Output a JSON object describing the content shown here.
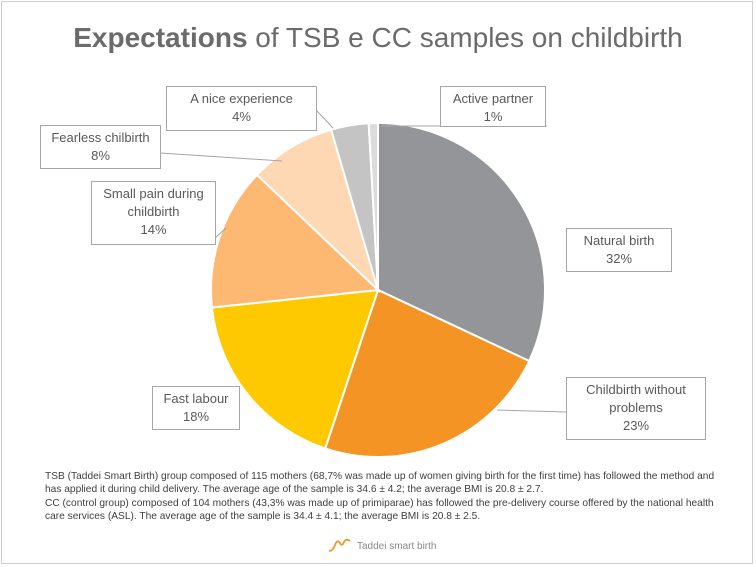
{
  "title": {
    "bold": "Expectations",
    "rest": " of TSB e CC samples on childbirth"
  },
  "chart_data": {
    "type": "pie",
    "title": "Expectations of TSB e CC samples on childbirth",
    "slices": [
      {
        "label": "Natural birth",
        "percent_label": "32%",
        "value": 32.5,
        "color": "#939598"
      },
      {
        "label": "Childbirth without problems",
        "percent_label": "23%",
        "value": 23.5,
        "color": "#f39424"
      },
      {
        "label": "Fast labour",
        "percent_label": "18%",
        "value": 18.5,
        "color": "#fec900"
      },
      {
        "label": "Small pain during childbirth",
        "percent_label": "14%",
        "value": 14.0,
        "color": "#fdb872"
      },
      {
        "label": "Fearless chilbirth",
        "percent_label": "8%",
        "value": 8.5,
        "color": "#fdd8b3"
      },
      {
        "label": "A nice experience",
        "percent_label": "4%",
        "value": 3.7,
        "color": "#c4c4c4"
      },
      {
        "label": "Active partner",
        "percent_label": "1%",
        "value": 0.9,
        "color": "#dcdcdc"
      }
    ]
  },
  "callouts": {
    "natural": {
      "label": "Natural birth",
      "pct": "32%"
    },
    "without_problems": {
      "label1": "Childbirth  without",
      "label2": "problems",
      "pct": "23%"
    },
    "fast": {
      "label": "Fast labour",
      "pct": "18%"
    },
    "small_pain": {
      "label1": "Small pain during",
      "label2": "childbirth",
      "pct": "14%"
    },
    "fearless": {
      "label": "Fearless chilbirth",
      "pct": "8%"
    },
    "nice": {
      "label": "A nice experience",
      "pct": "4%"
    },
    "active": {
      "label": "Active partner",
      "pct": "1%"
    }
  },
  "note": {
    "line1": "TSB (Taddei Smart Birth) group composed of 115 mothers (68,7% was made up of women giving birth for the first time) has followed the method and has applied it during child delivery. The average age of the sample is 34.6 ± 4.2; the average BMI is 20.8 ± 2.7.",
    "line2": "CC (control group) composed of 104 mothers (43,3% was made up of primiparae) has followed the pre-delivery course offered by the national health care services (ASL). The average age of the sample is 34.4 ± 4.1; the average BMI is 20.8 ± 2.5."
  },
  "logo": {
    "text": "Taddei smart birth",
    "icon": "wave-logo-icon",
    "color": "#f39424"
  }
}
